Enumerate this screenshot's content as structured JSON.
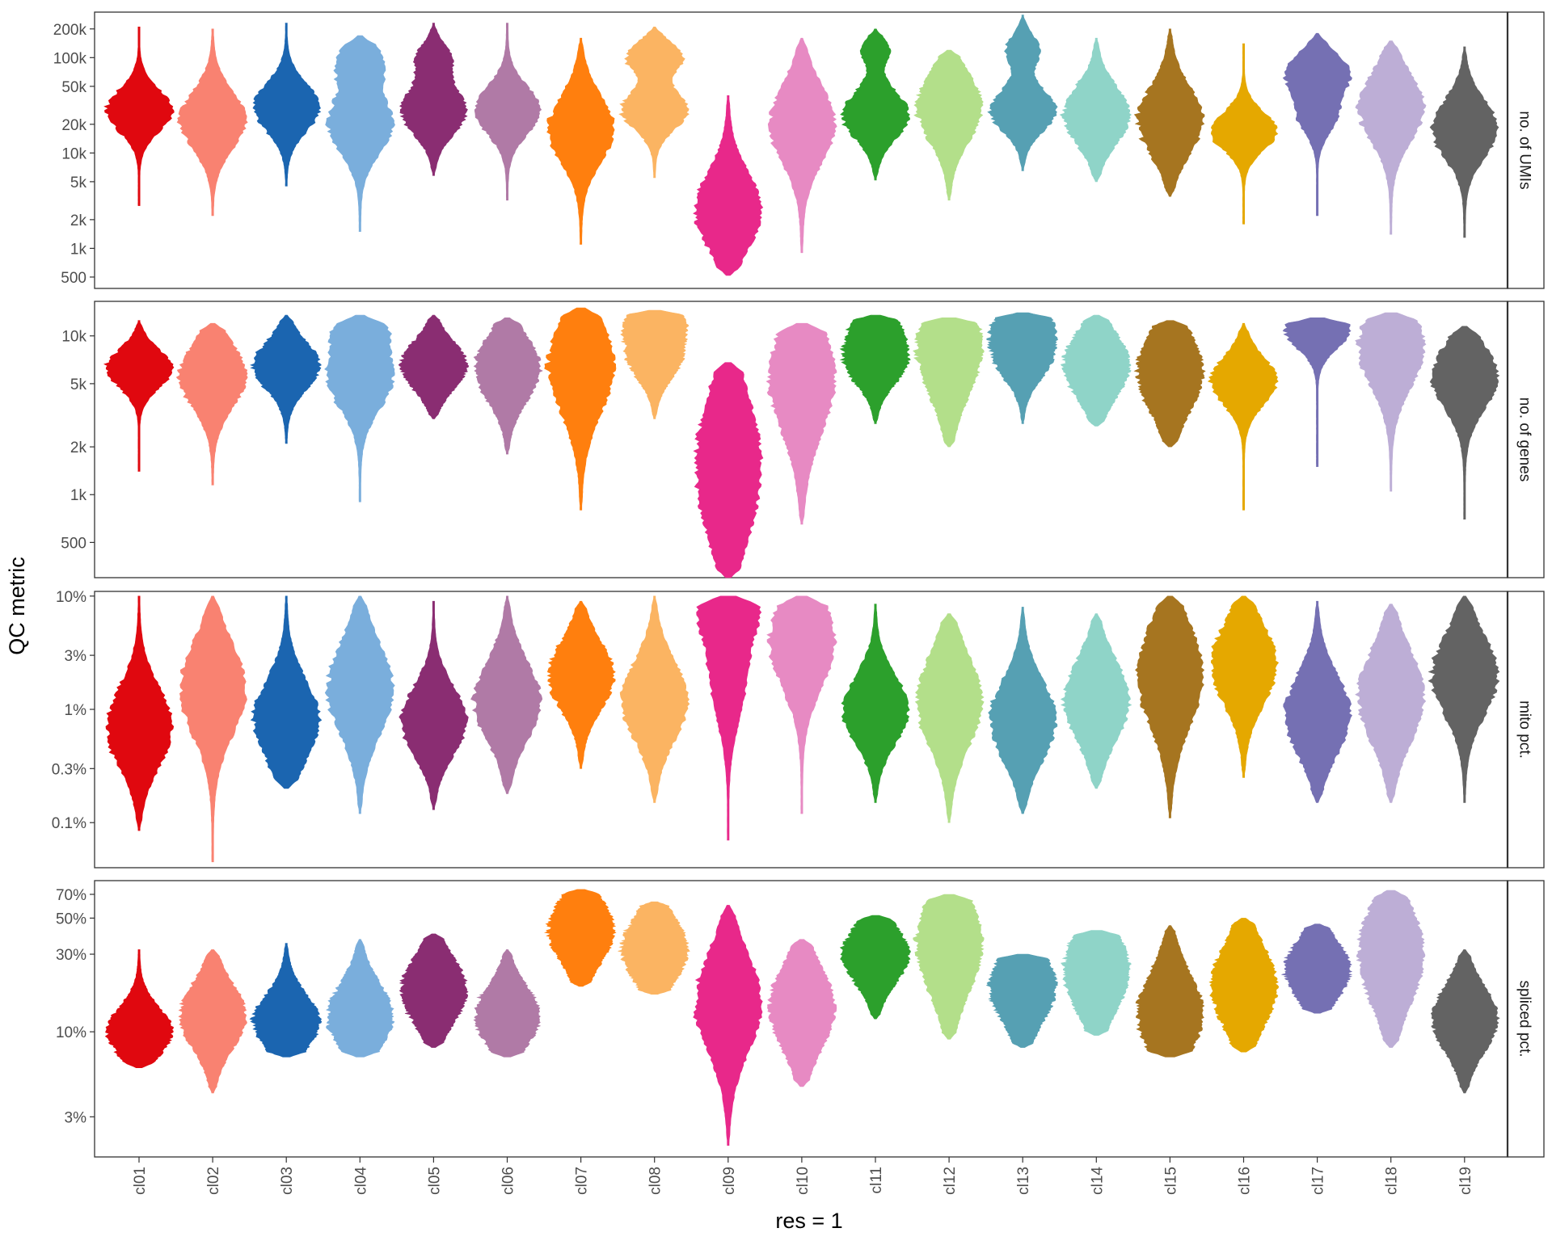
{
  "chart_data": {
    "type": "violin",
    "ylabel": "QC metric",
    "xlabel": "res = 1",
    "categories": [
      "cl01",
      "cl02",
      "cl03",
      "cl04",
      "cl05",
      "cl06",
      "cl07",
      "cl08",
      "cl09",
      "cl10",
      "cl11",
      "cl12",
      "cl13",
      "cl14",
      "cl15",
      "cl16",
      "cl17",
      "cl18",
      "cl19"
    ],
    "colors": [
      "#e0080f",
      "#f98271",
      "#1b65b0",
      "#7aaedc",
      "#8a2d72",
      "#b07aa6",
      "#ff7f0e",
      "#fbb462",
      "#e8288a",
      "#e78ac3",
      "#2ca02c",
      "#b3df8a",
      "#56a0b3",
      "#8fd4c8",
      "#a67520",
      "#e5a800",
      "#7570b3",
      "#bdaed6",
      "#636363"
    ],
    "panels": [
      {
        "name": "no. of UMIs",
        "scale": "log10",
        "ylim": [
          380,
          300000
        ],
        "ticks": [
          500,
          1000,
          2000,
          5000,
          10000,
          20000,
          50000,
          100000,
          200000
        ],
        "tick_labels": [
          "500",
          "1k",
          "2k",
          "5k",
          "10k",
          "20k",
          "50k",
          "100k",
          "200k"
        ],
        "violins": [
          {
            "min": 2800,
            "max": 210000,
            "modes": [
              [
                28000,
                1.0,
                0.22
              ]
            ]
          },
          {
            "min": 2200,
            "max": 200000,
            "modes": [
              [
                22000,
                0.85,
                0.3
              ]
            ]
          },
          {
            "min": 4500,
            "max": 230000,
            "modes": [
              [
                30000,
                0.95,
                0.25
              ]
            ]
          },
          {
            "min": 1500,
            "max": 170000,
            "modes": [
              [
                20000,
                0.7,
                0.3
              ],
              [
                90000,
                0.45,
                0.2
              ]
            ]
          },
          {
            "min": 5800,
            "max": 230000,
            "modes": [
              [
                28000,
                0.85,
                0.25
              ],
              [
                100000,
                0.4,
                0.15
              ]
            ]
          },
          {
            "min": 3200,
            "max": 230000,
            "modes": [
              [
                28000,
                0.8,
                0.25
              ]
            ]
          },
          {
            "min": 1100,
            "max": 160000,
            "modes": [
              [
                18000,
                0.75,
                0.35
              ]
            ]
          },
          {
            "min": 5500,
            "max": 210000,
            "modes": [
              [
                28000,
                0.65,
                0.2
              ],
              [
                100000,
                0.55,
                0.15
              ]
            ]
          },
          {
            "min": 520,
            "max": 40000,
            "modes": [
              [
                2500,
                0.75,
                0.4
              ]
            ]
          },
          {
            "min": 900,
            "max": 160000,
            "modes": [
              [
                20000,
                0.6,
                0.4
              ]
            ]
          },
          {
            "min": 5200,
            "max": 200000,
            "modes": [
              [
                25000,
                0.75,
                0.25
              ],
              [
                120000,
                0.3,
                0.12
              ]
            ]
          },
          {
            "min": 3200,
            "max": 120000,
            "modes": [
              [
                30000,
                0.65,
                0.35
              ]
            ]
          },
          {
            "min": 6500,
            "max": 280000,
            "modes": [
              [
                28000,
                0.7,
                0.22
              ],
              [
                120000,
                0.35,
                0.15
              ]
            ]
          },
          {
            "min": 5000,
            "max": 160000,
            "modes": [
              [
                25000,
                0.75,
                0.3
              ]
            ]
          },
          {
            "min": 3500,
            "max": 200000,
            "modes": [
              [
                22000,
                0.75,
                0.35
              ]
            ]
          },
          {
            "min": 1800,
            "max": 140000,
            "modes": [
              [
                17000,
                0.8,
                0.2
              ]
            ]
          },
          {
            "min": 2200,
            "max": 180000,
            "modes": [
              [
                70000,
                0.85,
                0.2
              ],
              [
                25000,
                0.5,
                0.2
              ]
            ]
          },
          {
            "min": 1400,
            "max": 150000,
            "modes": [
              [
                30000,
                0.7,
                0.35
              ]
            ]
          },
          {
            "min": 1300,
            "max": 130000,
            "modes": [
              [
                18000,
                0.75,
                0.3
              ]
            ]
          }
        ]
      },
      {
        "name": "no. of genes",
        "scale": "log10",
        "ylim": [
          300,
          16500
        ],
        "ticks": [
          500,
          1000,
          2000,
          5000,
          10000
        ],
        "tick_labels": [
          "500",
          "1k",
          "2k",
          "5k",
          "10k"
        ],
        "violins": [
          {
            "min": 1400,
            "max": 12500,
            "modes": [
              [
                6200,
                1.0,
                0.12
              ]
            ]
          },
          {
            "min": 1150,
            "max": 12000,
            "modes": [
              [
                5600,
                0.85,
                0.2
              ]
            ]
          },
          {
            "min": 2100,
            "max": 13500,
            "modes": [
              [
                6500,
                0.85,
                0.15
              ]
            ]
          },
          {
            "min": 900,
            "max": 13500,
            "modes": [
              [
                5500,
                0.75,
                0.2
              ],
              [
                11000,
                0.4,
                0.1
              ]
            ]
          },
          {
            "min": 3000,
            "max": 13500,
            "modes": [
              [
                6500,
                0.85,
                0.15
              ]
            ]
          },
          {
            "min": 1800,
            "max": 13000,
            "modes": [
              [
                6200,
                0.75,
                0.2
              ]
            ]
          },
          {
            "min": 800,
            "max": 15000,
            "modes": [
              [
                6500,
                0.75,
                0.3
              ]
            ]
          },
          {
            "min": 3000,
            "max": 14500,
            "modes": [
              [
                7500,
                0.65,
                0.15
              ],
              [
                13000,
                0.55,
                0.1
              ]
            ]
          },
          {
            "min": 300,
            "max": 6800,
            "modes": [
              [
                1500,
                0.75,
                0.45
              ]
            ]
          },
          {
            "min": 650,
            "max": 12000,
            "modes": [
              [
                5500,
                0.65,
                0.35
              ]
            ]
          },
          {
            "min": 2800,
            "max": 13500,
            "modes": [
              [
                7000,
                0.75,
                0.15
              ],
              [
                12000,
                0.35,
                0.1
              ]
            ]
          },
          {
            "min": 2000,
            "max": 13000,
            "modes": [
              [
                8500,
                0.7,
                0.3
              ]
            ]
          },
          {
            "min": 2800,
            "max": 14000,
            "modes": [
              [
                7500,
                0.7,
                0.15
              ],
              [
                12500,
                0.45,
                0.1
              ]
            ]
          },
          {
            "min": 2700,
            "max": 13500,
            "modes": [
              [
                6500,
                0.7,
                0.2
              ]
            ]
          },
          {
            "min": 2000,
            "max": 12500,
            "modes": [
              [
                6000,
                0.75,
                0.25
              ]
            ]
          },
          {
            "min": 800,
            "max": 12000,
            "modes": [
              [
                5200,
                0.75,
                0.15
              ]
            ]
          },
          {
            "min": 1500,
            "max": 13000,
            "modes": [
              [
                11000,
                0.9,
                0.12
              ]
            ]
          },
          {
            "min": 1050,
            "max": 14000,
            "modes": [
              [
                8500,
                0.8,
                0.25
              ]
            ]
          },
          {
            "min": 700,
            "max": 11500,
            "modes": [
              [
                5500,
                0.75,
                0.2
              ]
            ]
          }
        ]
      },
      {
        "name": "mito pct.",
        "scale": "log10",
        "ylim": [
          0.04,
          11
        ],
        "ticks": [
          0.1,
          0.3,
          1,
          3,
          10
        ],
        "tick_labels": [
          "0.1%",
          "0.3%",
          "1%",
          "3%",
          "10%"
        ],
        "violins": [
          {
            "min": 0.085,
            "max": 10,
            "modes": [
              [
                0.7,
                0.9,
                0.35
              ]
            ]
          },
          {
            "min": 0.045,
            "max": 10,
            "modes": [
              [
                1.5,
                0.85,
                0.4
              ]
            ]
          },
          {
            "min": 0.2,
            "max": 10,
            "modes": [
              [
                0.8,
                0.85,
                0.35
              ]
            ]
          },
          {
            "min": 0.12,
            "max": 10,
            "modes": [
              [
                1.5,
                0.8,
                0.4
              ]
            ]
          },
          {
            "min": 0.13,
            "max": 9,
            "modes": [
              [
                0.8,
                0.8,
                0.3
              ]
            ]
          },
          {
            "min": 0.18,
            "max": 10,
            "modes": [
              [
                1.2,
                0.75,
                0.35
              ]
            ]
          },
          {
            "min": 0.3,
            "max": 9,
            "modes": [
              [
                2,
                0.8,
                0.3
              ]
            ]
          },
          {
            "min": 0.15,
            "max": 10,
            "modes": [
              [
                1.2,
                0.75,
                0.35
              ]
            ]
          },
          {
            "min": 0.07,
            "max": 10,
            "modes": [
              [
                10,
                1.0,
                0.3
              ],
              [
                2,
                0.6,
                0.4
              ]
            ]
          },
          {
            "min": 0.12,
            "max": 10,
            "modes": [
              [
                4,
                0.8,
                0.4
              ]
            ]
          },
          {
            "min": 0.15,
            "max": 8.5,
            "modes": [
              [
                1,
                0.8,
                0.3
              ]
            ]
          },
          {
            "min": 0.1,
            "max": 7,
            "modes": [
              [
                1.2,
                0.75,
                0.4
              ]
            ]
          },
          {
            "min": 0.12,
            "max": 8,
            "modes": [
              [
                0.8,
                0.75,
                0.35
              ]
            ]
          },
          {
            "min": 0.2,
            "max": 7,
            "modes": [
              [
                1.2,
                0.8,
                0.35
              ]
            ]
          },
          {
            "min": 0.11,
            "max": 10,
            "modes": [
              [
                2,
                0.85,
                0.45
              ]
            ]
          },
          {
            "min": 0.25,
            "max": 10,
            "modes": [
              [
                2.5,
                0.85,
                0.35
              ]
            ]
          },
          {
            "min": 0.15,
            "max": 9,
            "modes": [
              [
                0.9,
                0.8,
                0.35
              ]
            ]
          },
          {
            "min": 0.15,
            "max": 8.5,
            "modes": [
              [
                1.3,
                0.75,
                0.4
              ]
            ]
          },
          {
            "min": 0.15,
            "max": 10,
            "modes": [
              [
                2,
                0.8,
                0.35
              ]
            ]
          }
        ]
      },
      {
        "name": "spliced pct.",
        "scale": "log10",
        "ylim": [
          1.7,
          85
        ],
        "ticks": [
          3,
          10,
          30,
          50,
          70
        ],
        "tick_labels": [
          "3%",
          "10%",
          "30%",
          "50%",
          "70%"
        ],
        "violins": [
          {
            "min": 6,
            "max": 32,
            "modes": [
              [
                10,
                0.8,
                0.15
              ]
            ]
          },
          {
            "min": 4.2,
            "max": 32,
            "modes": [
              [
                12.5,
                0.75,
                0.2
              ]
            ]
          },
          {
            "min": 7,
            "max": 35,
            "modes": [
              [
                11.5,
                0.8,
                0.17
              ]
            ]
          },
          {
            "min": 7,
            "max": 37,
            "modes": [
              [
                12.5,
                0.75,
                0.2
              ]
            ]
          },
          {
            "min": 8,
            "max": 40,
            "modes": [
              [
                18,
                0.75,
                0.2
              ]
            ]
          },
          {
            "min": 7,
            "max": 32,
            "modes": [
              [
                12.5,
                0.7,
                0.18
              ]
            ]
          },
          {
            "min": 19,
            "max": 75,
            "modes": [
              [
                42,
                0.85,
                0.2
              ]
            ]
          },
          {
            "min": 17,
            "max": 63,
            "modes": [
              [
                32,
                0.75,
                0.2
              ]
            ]
          },
          {
            "min": 2,
            "max": 60,
            "modes": [
              [
                15,
                0.75,
                0.3
              ]
            ]
          },
          {
            "min": 4.6,
            "max": 37,
            "modes": [
              [
                14,
                0.7,
                0.25
              ]
            ]
          },
          {
            "min": 12,
            "max": 52,
            "modes": [
              [
                30,
                0.8,
                0.18
              ]
            ]
          },
          {
            "min": 9,
            "max": 70,
            "modes": [
              [
                35,
                0.75,
                0.3
              ]
            ]
          },
          {
            "min": 8,
            "max": 30,
            "modes": [
              [
                19,
                0.75,
                0.22
              ]
            ]
          },
          {
            "min": 9.5,
            "max": 42,
            "modes": [
              [
                24,
                0.75,
                0.25
              ]
            ]
          },
          {
            "min": 7,
            "max": 45,
            "modes": [
              [
                13,
                0.75,
                0.25
              ]
            ]
          },
          {
            "min": 7.5,
            "max": 50,
            "modes": [
              [
                19,
                0.8,
                0.25
              ]
            ]
          },
          {
            "min": 13,
            "max": 46,
            "modes": [
              [
                24,
                0.75,
                0.18
              ]
            ]
          },
          {
            "min": 8,
            "max": 74,
            "modes": [
              [
                30,
                0.75,
                0.3
              ]
            ]
          },
          {
            "min": 4.2,
            "max": 32,
            "modes": [
              [
                12,
                0.8,
                0.2
              ]
            ]
          }
        ]
      }
    ]
  }
}
